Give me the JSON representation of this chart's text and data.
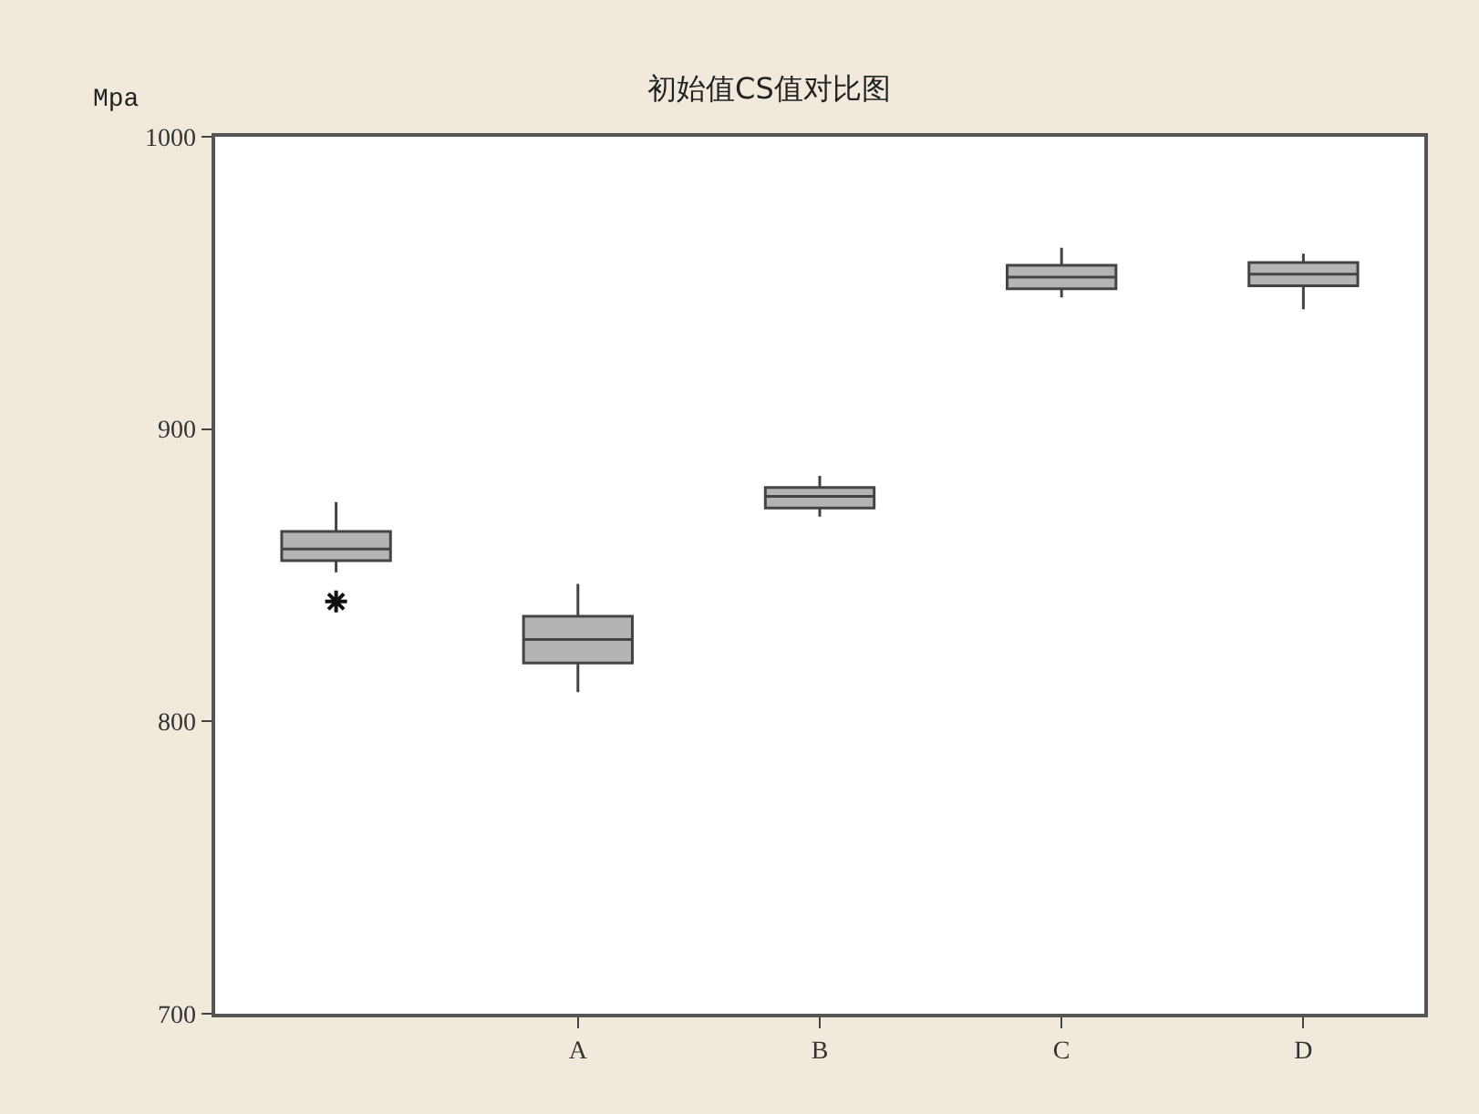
{
  "chart_data": {
    "type": "box",
    "title": "初始值CS值对比图",
    "ylabel": "Mpa",
    "categories": [
      null,
      "A",
      "B",
      "C",
      "D"
    ],
    "color": "#b4b4b4",
    "boxes": [
      {
        "low": 851,
        "q1": 855,
        "median": 859,
        "q3": 865,
        "high": 875,
        "outliers": [
          841
        ]
      },
      {
        "low": 810,
        "q1": 820,
        "median": 828,
        "q3": 836,
        "high": 847
      },
      {
        "low": 870,
        "q1": 873,
        "median": 877,
        "q3": 880,
        "high": 884
      },
      {
        "low": 945,
        "q1": 948,
        "median": 952,
        "q3": 956,
        "high": 962
      },
      {
        "low": 941,
        "q1": 949,
        "median": 953,
        "q3": 957,
        "high": 960
      }
    ],
    "ylim": [
      700,
      1000
    ],
    "yticks": [
      700,
      800,
      900,
      1000
    ],
    "grid": false
  }
}
